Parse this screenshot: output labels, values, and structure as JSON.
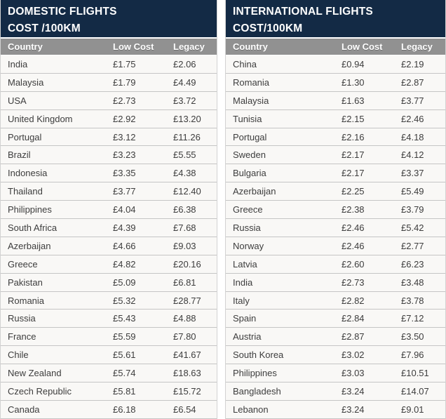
{
  "colors": {
    "title_bg": "#132a45",
    "title_text": "#ffffff",
    "column_header_bg": "#919191",
    "column_header_text": "#ffffff",
    "row_bg": "#f9f8f6",
    "row_separator": "#c5c5c5",
    "cell_text": "#3d3d3d"
  },
  "chart_data": [
    {
      "type": "table",
      "title": "DOMESTIC FLIGHTS COST /100KM",
      "title_line1": "DOMESTIC FLIGHTS",
      "title_line2": "COST /100KM",
      "columns": [
        "Country",
        "Low Cost",
        "Legacy"
      ],
      "rows": [
        [
          "India",
          "£1.75",
          "£2.06"
        ],
        [
          "Malaysia",
          "£1.79",
          "£4.49"
        ],
        [
          "USA",
          "£2.73",
          "£3.72"
        ],
        [
          "United Kingdom",
          "£2.92",
          "£13.20"
        ],
        [
          "Portugal",
          "£3.12",
          "£11.26"
        ],
        [
          "Brazil",
          "£3.23",
          "£5.55"
        ],
        [
          "Indonesia",
          "£3.35",
          "£4.38"
        ],
        [
          "Thailand",
          "£3.77",
          "£12.40"
        ],
        [
          "Philippines",
          "£4.04",
          "£6.38"
        ],
        [
          "South Africa",
          "£4.39",
          "£7.68"
        ],
        [
          "Azerbaijan",
          "£4.66",
          "£9.03"
        ],
        [
          "Greece",
          "£4.82",
          "£20.16"
        ],
        [
          "Pakistan",
          "£5.09",
          "£6.81"
        ],
        [
          "Romania",
          "£5.32",
          "£28.77"
        ],
        [
          "Russia",
          "£5.43",
          "£4.88"
        ],
        [
          "France",
          "£5.59",
          "£7.80"
        ],
        [
          "Chile",
          "£5.61",
          "£41.67"
        ],
        [
          "New Zealand",
          "£5.74",
          "£18.63"
        ],
        [
          "Czech Republic",
          "£5.81",
          "£15.72"
        ],
        [
          "Canada",
          "£6.18",
          "£6.54"
        ]
      ]
    },
    {
      "type": "table",
      "title": "INTERNATIONAL FLIGHTS COST/100KM",
      "title_line1": "INTERNATIONAL FLIGHTS",
      "title_line2": "COST/100KM",
      "columns": [
        "Country",
        "Low Cost",
        "Legacy"
      ],
      "rows": [
        [
          "China",
          "£0.94",
          "£2.19"
        ],
        [
          "Romania",
          "£1.30",
          "£2.87"
        ],
        [
          "Malaysia",
          "£1.63",
          "£3.77"
        ],
        [
          "Tunisia",
          "£2.15",
          "£2.46"
        ],
        [
          "Portugal",
          "£2.16",
          "£4.18"
        ],
        [
          "Sweden",
          "£2.17",
          "£4.12"
        ],
        [
          "Bulgaria",
          "£2.17",
          "£3.37"
        ],
        [
          "Azerbaijan",
          "£2.25",
          "£5.49"
        ],
        [
          "Greece",
          "£2.38",
          "£3.79"
        ],
        [
          "Russia",
          "£2.46",
          "£5.42"
        ],
        [
          "Norway",
          "£2.46",
          "£2.77"
        ],
        [
          "Latvia",
          "£2.60",
          "£6.23"
        ],
        [
          "India",
          "£2.73",
          "£3.48"
        ],
        [
          "Italy",
          "£2.82",
          "£3.78"
        ],
        [
          "Spain",
          "£2.84",
          "£7.12"
        ],
        [
          "Austria",
          "£2.87",
          "£3.50"
        ],
        [
          "South Korea",
          "£3.02",
          "£7.96"
        ],
        [
          "Philippines",
          "£3.03",
          "£10.51"
        ],
        [
          "Bangladesh",
          "£3.24",
          "£14.07"
        ],
        [
          "Lebanon",
          "£3.24",
          "£9.01"
        ]
      ]
    }
  ]
}
